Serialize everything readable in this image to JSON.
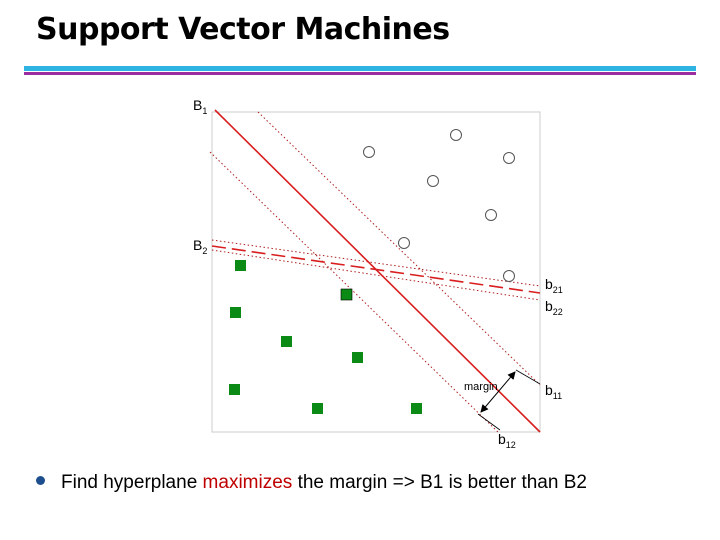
{
  "title": "Support Vector Machines",
  "diagram": {
    "labels": {
      "B1": {
        "main": "B",
        "sub": "1"
      },
      "B2": {
        "main": "B",
        "sub": "2"
      },
      "b21": {
        "main": "b",
        "sub": "21"
      },
      "b22": {
        "main": "b",
        "sub": "22"
      },
      "b11": {
        "main": "b",
        "sub": "11"
      },
      "b12": {
        "main": "b",
        "sub": "12"
      },
      "margin": "margin"
    },
    "colors": {
      "hyperplane": "#d81e1e",
      "square_class": "#0b8a16",
      "circle_class": "#ffffff",
      "frame": "#cccccc"
    }
  },
  "bullet": {
    "before": "Find hyperplane",
    "highlight": "maximizes",
    "after": "the margin => B1 is better than B2"
  }
}
